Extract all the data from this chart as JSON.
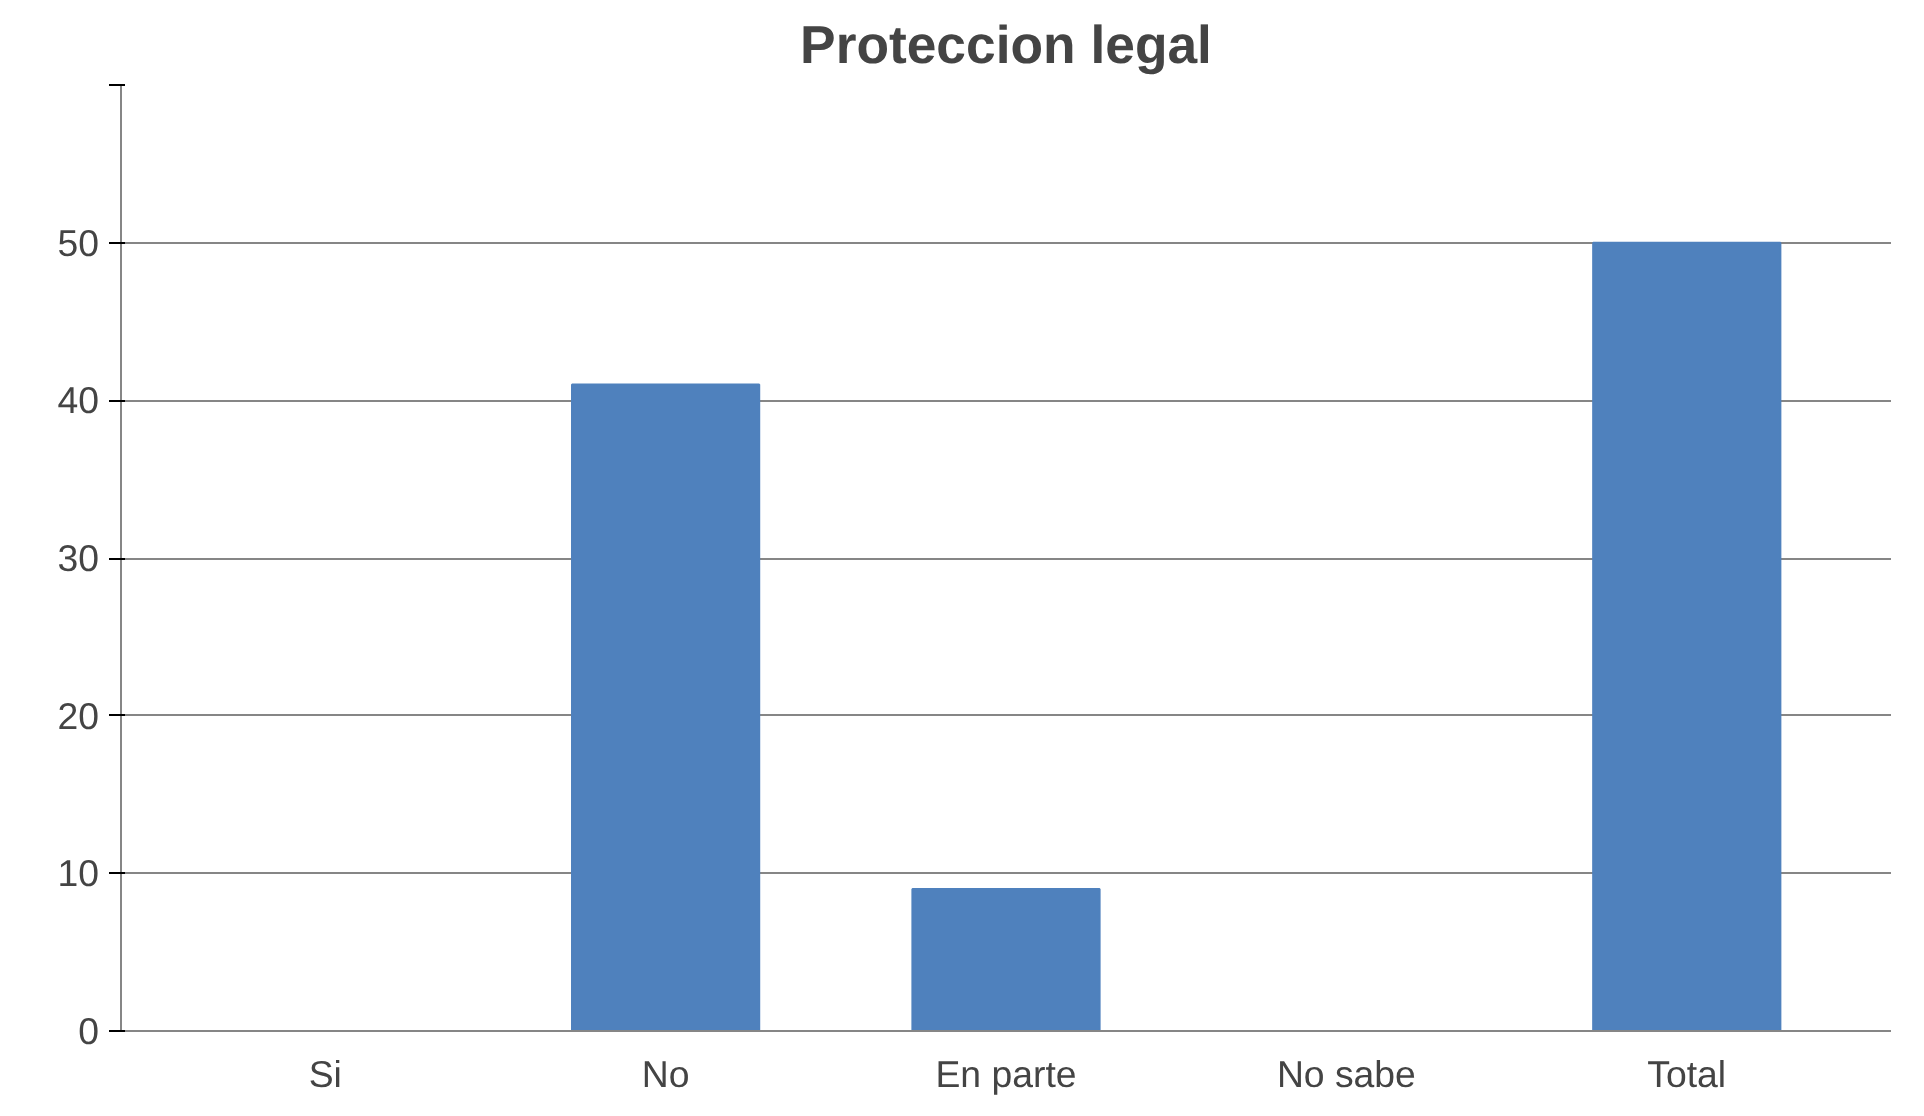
{
  "chart_data": {
    "type": "bar",
    "title": "Proteccion legal",
    "categories": [
      "Si",
      "No",
      "En parte",
      "No sabe",
      "Total"
    ],
    "values": [
      0,
      41,
      9,
      0,
      50
    ],
    "color": "#4f81bd",
    "ylim": [
      0,
      60
    ],
    "yticks": [
      0,
      10,
      20,
      30,
      40,
      50,
      {
        "value": 60,
        "label": null
      }
    ],
    "grid": "y"
  }
}
